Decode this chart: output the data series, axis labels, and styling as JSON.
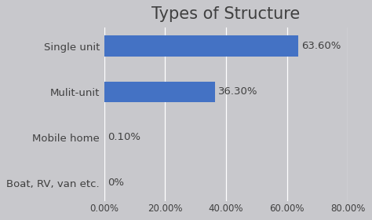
{
  "title": "Types of Structure",
  "categories": [
    "Single unit",
    "Mulit-unit",
    "Mobile home",
    "Boat, RV, van etc."
  ],
  "values": [
    0.636,
    0.363,
    0.001,
    0.0
  ],
  "bar_labels": [
    "63.60%",
    "36.30%",
    "0.10%",
    "0%"
  ],
  "bar_color": "#4472C4",
  "background_color": "#C8C8CC",
  "text_color": "#404040",
  "xlim": [
    0,
    0.8
  ],
  "xticks": [
    0.0,
    0.2,
    0.4,
    0.6,
    0.8
  ],
  "xtick_labels": [
    "0.00%",
    "20.00%",
    "40.00%",
    "60.00%",
    "80.00%"
  ],
  "title_fontsize": 15,
  "label_fontsize": 9.5,
  "tick_fontsize": 8.5,
  "bar_height": 0.45
}
